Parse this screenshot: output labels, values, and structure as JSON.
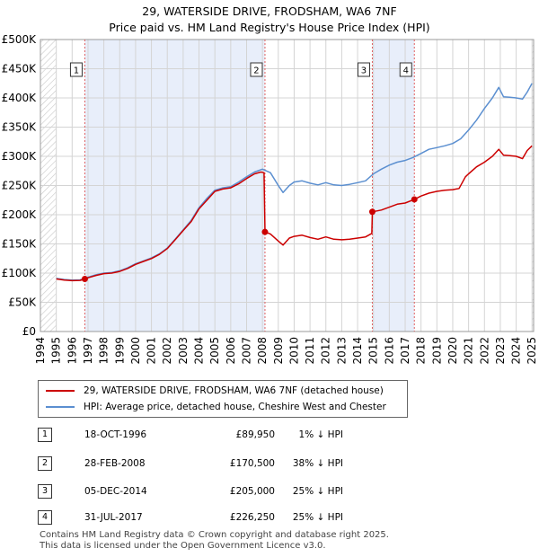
{
  "title_line1": "29, WATERSIDE DRIVE, FRODSHAM, WA6 7NF",
  "title_line2": "Price paid vs. HM Land Registry's House Price Index (HPI)",
  "colors": {
    "property": "#cc0000",
    "hpi": "#5b8fd0",
    "shade": "#e8eefa",
    "grid": "#d4d4d4",
    "hatch": "#c8c8c8"
  },
  "chart_data": {
    "type": "line",
    "title": "Price paid vs. HM Land Registry's House Price Index (HPI)",
    "xlabel": "",
    "ylabel": "",
    "xlim": [
      1994.0,
      2025.1
    ],
    "ylim": [
      0,
      500000
    ],
    "grid": true,
    "x_ticks": [
      "1994",
      "1995",
      "1996",
      "1997",
      "1998",
      "1999",
      "2000",
      "2001",
      "2002",
      "2003",
      "2004",
      "2005",
      "2006",
      "2007",
      "2008",
      "2009",
      "2010",
      "2011",
      "2012",
      "2013",
      "2014",
      "2015",
      "2016",
      "2017",
      "2018",
      "2019",
      "2020",
      "2021",
      "2022",
      "2023",
      "2024",
      "2025"
    ],
    "y_ticks": [
      {
        "value": 0,
        "label": "£0"
      },
      {
        "value": 50000,
        "label": "£50K"
      },
      {
        "value": 100000,
        "label": "£100K"
      },
      {
        "value": 150000,
        "label": "£150K"
      },
      {
        "value": 200000,
        "label": "£200K"
      },
      {
        "value": 250000,
        "label": "£250K"
      },
      {
        "value": 300000,
        "label": "£300K"
      },
      {
        "value": 350000,
        "label": "£350K"
      },
      {
        "value": 400000,
        "label": "£400K"
      },
      {
        "value": 450000,
        "label": "£450K"
      },
      {
        "value": 500000,
        "label": "£500K"
      }
    ],
    "hatched_before": 1995.0,
    "hatched_after": 2025.0,
    "shaded_ranges": [
      [
        1996.8,
        2008.15
      ],
      [
        2014.93,
        2017.58
      ]
    ],
    "markers": [
      {
        "label": "1",
        "x": 1996.8,
        "y": 89950
      },
      {
        "label": "2",
        "x": 2008.16,
        "y": 170500
      },
      {
        "label": "3",
        "x": 2014.93,
        "y": 205000
      },
      {
        "label": "4",
        "x": 2017.58,
        "y": 226250
      }
    ],
    "series": [
      {
        "name": "29, WATERSIDE DRIVE, FRODSHAM, WA6 7NF (detached house)",
        "color": "#cc0000",
        "points": [
          [
            1995.0,
            90000
          ],
          [
            1995.5,
            88000
          ],
          [
            1996.0,
            87000
          ],
          [
            1996.5,
            87500
          ],
          [
            1996.8,
            89950
          ],
          [
            1997.0,
            92000
          ],
          [
            1997.5,
            96000
          ],
          [
            1998.0,
            99000
          ],
          [
            1998.5,
            100000
          ],
          [
            1999.0,
            103000
          ],
          [
            1999.5,
            108000
          ],
          [
            2000.0,
            115000
          ],
          [
            2000.5,
            120000
          ],
          [
            2001.0,
            125000
          ],
          [
            2001.5,
            132000
          ],
          [
            2002.0,
            142000
          ],
          [
            2002.5,
            157000
          ],
          [
            2003.0,
            173000
          ],
          [
            2003.5,
            188000
          ],
          [
            2004.0,
            210000
          ],
          [
            2004.5,
            225000
          ],
          [
            2005.0,
            240000
          ],
          [
            2005.5,
            244000
          ],
          [
            2006.0,
            246000
          ],
          [
            2006.5,
            253000
          ],
          [
            2007.0,
            262000
          ],
          [
            2007.5,
            270000
          ],
          [
            2007.9,
            273000
          ],
          [
            2008.1,
            272000
          ],
          [
            2008.16,
            170500
          ],
          [
            2008.5,
            167000
          ],
          [
            2009.0,
            155000
          ],
          [
            2009.3,
            148000
          ],
          [
            2009.7,
            160000
          ],
          [
            2010.0,
            163000
          ],
          [
            2010.5,
            165000
          ],
          [
            2011.0,
            161000
          ],
          [
            2011.5,
            158000
          ],
          [
            2012.0,
            162000
          ],
          [
            2012.5,
            158000
          ],
          [
            2013.0,
            157000
          ],
          [
            2013.5,
            158000
          ],
          [
            2014.0,
            160000
          ],
          [
            2014.5,
            162000
          ],
          [
            2014.9,
            168000
          ],
          [
            2014.93,
            205000
          ],
          [
            2015.5,
            208000
          ],
          [
            2016.0,
            213000
          ],
          [
            2016.5,
            218000
          ],
          [
            2017.0,
            220000
          ],
          [
            2017.58,
            226250
          ],
          [
            2018.0,
            232000
          ],
          [
            2018.5,
            237000
          ],
          [
            2019.0,
            240000
          ],
          [
            2019.5,
            242000
          ],
          [
            2020.0,
            243000
          ],
          [
            2020.4,
            245000
          ],
          [
            2020.8,
            265000
          ],
          [
            2021.0,
            270000
          ],
          [
            2021.5,
            282000
          ],
          [
            2022.0,
            290000
          ],
          [
            2022.5,
            300000
          ],
          [
            2022.9,
            312000
          ],
          [
            2023.2,
            302000
          ],
          [
            2023.6,
            301000
          ],
          [
            2024.0,
            300000
          ],
          [
            2024.4,
            296000
          ],
          [
            2024.7,
            310000
          ],
          [
            2025.0,
            318000
          ]
        ]
      },
      {
        "name": "HPI: Average price, detached house, Cheshire West and Chester",
        "color": "#5b8fd0",
        "points": [
          [
            1995.0,
            91000
          ],
          [
            1995.5,
            89000
          ],
          [
            1996.0,
            88000
          ],
          [
            1996.5,
            88500
          ],
          [
            1997.0,
            93000
          ],
          [
            1997.5,
            97000
          ],
          [
            1998.0,
            100000
          ],
          [
            1998.5,
            101000
          ],
          [
            1999.0,
            104000
          ],
          [
            1999.5,
            109000
          ],
          [
            2000.0,
            116000
          ],
          [
            2000.5,
            121000
          ],
          [
            2001.0,
            126000
          ],
          [
            2001.5,
            133000
          ],
          [
            2002.0,
            143000
          ],
          [
            2002.5,
            158000
          ],
          [
            2003.0,
            174000
          ],
          [
            2003.5,
            190000
          ],
          [
            2004.0,
            212000
          ],
          [
            2004.5,
            228000
          ],
          [
            2005.0,
            242000
          ],
          [
            2005.5,
            246000
          ],
          [
            2006.0,
            248000
          ],
          [
            2006.5,
            256000
          ],
          [
            2007.0,
            265000
          ],
          [
            2007.5,
            273000
          ],
          [
            2008.0,
            278000
          ],
          [
            2008.5,
            272000
          ],
          [
            2009.0,
            250000
          ],
          [
            2009.3,
            238000
          ],
          [
            2009.7,
            250000
          ],
          [
            2010.0,
            256000
          ],
          [
            2010.5,
            258000
          ],
          [
            2011.0,
            254000
          ],
          [
            2011.5,
            251000
          ],
          [
            2012.0,
            255000
          ],
          [
            2012.5,
            251000
          ],
          [
            2013.0,
            250000
          ],
          [
            2013.5,
            252000
          ],
          [
            2014.0,
            255000
          ],
          [
            2014.5,
            258000
          ],
          [
            2015.0,
            270000
          ],
          [
            2015.5,
            278000
          ],
          [
            2016.0,
            285000
          ],
          [
            2016.5,
            290000
          ],
          [
            2017.0,
            293000
          ],
          [
            2017.5,
            298000
          ],
          [
            2018.0,
            305000
          ],
          [
            2018.5,
            312000
          ],
          [
            2019.0,
            315000
          ],
          [
            2019.5,
            318000
          ],
          [
            2020.0,
            322000
          ],
          [
            2020.5,
            330000
          ],
          [
            2021.0,
            345000
          ],
          [
            2021.5,
            362000
          ],
          [
            2022.0,
            382000
          ],
          [
            2022.5,
            400000
          ],
          [
            2022.9,
            418000
          ],
          [
            2023.2,
            402000
          ],
          [
            2023.6,
            401000
          ],
          [
            2024.0,
            400000
          ],
          [
            2024.4,
            398000
          ],
          [
            2024.7,
            410000
          ],
          [
            2025.0,
            425000
          ]
        ]
      }
    ]
  },
  "legend": {
    "property_label": "29, WATERSIDE DRIVE, FRODSHAM, WA6 7NF (detached house)",
    "hpi_label": "HPI: Average price, detached house, Cheshire West and Chester"
  },
  "transactions": [
    {
      "num": "1",
      "date": "18-OCT-1996",
      "price": "£89,950",
      "hpi": "1% ↓ HPI"
    },
    {
      "num": "2",
      "date": "28-FEB-2008",
      "price": "£170,500",
      "hpi": "38% ↓ HPI"
    },
    {
      "num": "3",
      "date": "05-DEC-2014",
      "price": "£205,000",
      "hpi": "25% ↓ HPI"
    },
    {
      "num": "4",
      "date": "31-JUL-2017",
      "price": "£226,250",
      "hpi": "25% ↓ HPI"
    }
  ],
  "footer_line1": "Contains HM Land Registry data © Crown copyright and database right 2025.",
  "footer_line2": "This data is licensed under the Open Government Licence v3.0."
}
